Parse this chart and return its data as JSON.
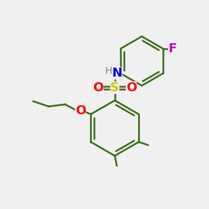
{
  "bg_color": "#f0f0f0",
  "bond_color": "#3a6b1a",
  "bond_width": 1.8,
  "S_color": "#cccc00",
  "O_color": "#ff0000",
  "N_color": "#0000ee",
  "H_color": "#808080",
  "F_color": "#cc00cc",
  "figsize": [
    3.0,
    3.0
  ],
  "dpi": 100,
  "xlim": [
    0,
    10
  ],
  "ylim": [
    0,
    10
  ]
}
